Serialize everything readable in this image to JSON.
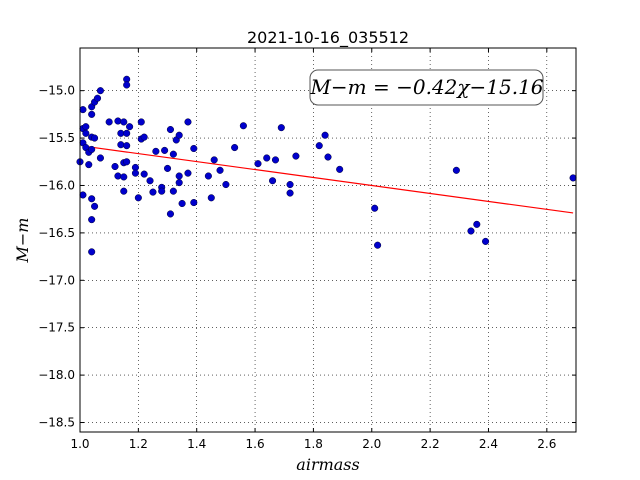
{
  "chart_data": {
    "type": "scatter",
    "title": "2021-10-16_035512",
    "xlabel": "airmass",
    "ylabel": "M−m",
    "xlim": [
      1.0,
      2.7
    ],
    "ylim": [
      -18.6,
      -14.55
    ],
    "x_ticks": [
      "1.0",
      "1.2",
      "1.4",
      "1.6",
      "1.8",
      "2.0",
      "2.2",
      "2.4",
      "2.6"
    ],
    "y_ticks": [
      "−15.0",
      "−15.5",
      "−16.0",
      "−16.5",
      "−17.0",
      "−17.5",
      "−18.0",
      "−18.5"
    ],
    "grid": true,
    "annotation": "M−m = −0.42χ−15.16",
    "fit": {
      "slope": -0.42,
      "intercept": -15.16,
      "x_range": [
        1.02,
        2.69
      ],
      "color": "#ff0000"
    },
    "point_color": "#0000cc",
    "points": [
      [
        1.0,
        -15.75
      ],
      [
        1.01,
        -15.2
      ],
      [
        1.01,
        -15.4
      ],
      [
        1.01,
        -15.55
      ],
      [
        1.01,
        -16.1
      ],
      [
        1.02,
        -15.6
      ],
      [
        1.02,
        -15.38
      ],
      [
        1.02,
        -15.45
      ],
      [
        1.03,
        -15.65
      ],
      [
        1.03,
        -15.78
      ],
      [
        1.04,
        -15.17
      ],
      [
        1.04,
        -15.25
      ],
      [
        1.04,
        -15.49
      ],
      [
        1.04,
        -15.62
      ],
      [
        1.04,
        -16.14
      ],
      [
        1.04,
        -16.36
      ],
      [
        1.04,
        -16.7
      ],
      [
        1.05,
        -15.12
      ],
      [
        1.05,
        -15.5
      ],
      [
        1.05,
        -16.22
      ],
      [
        1.06,
        -15.08
      ],
      [
        1.07,
        -15.0
      ],
      [
        1.07,
        -15.71
      ],
      [
        1.1,
        -15.33
      ],
      [
        1.12,
        -15.8
      ],
      [
        1.13,
        -15.32
      ],
      [
        1.13,
        -15.9
      ],
      [
        1.14,
        -15.45
      ],
      [
        1.14,
        -15.57
      ],
      [
        1.15,
        -15.33
      ],
      [
        1.15,
        -15.76
      ],
      [
        1.15,
        -15.91
      ],
      [
        1.15,
        -16.06
      ],
      [
        1.16,
        -14.88
      ],
      [
        1.16,
        -14.94
      ],
      [
        1.16,
        -15.45
      ],
      [
        1.16,
        -15.58
      ],
      [
        1.16,
        -15.75
      ],
      [
        1.17,
        -15.38
      ],
      [
        1.19,
        -15.81
      ],
      [
        1.19,
        -15.87
      ],
      [
        1.2,
        -16.13
      ],
      [
        1.21,
        -15.33
      ],
      [
        1.21,
        -15.51
      ],
      [
        1.22,
        -15.49
      ],
      [
        1.22,
        -15.88
      ],
      [
        1.24,
        -15.95
      ],
      [
        1.25,
        -16.07
      ],
      [
        1.26,
        -15.64
      ],
      [
        1.28,
        -16.02
      ],
      [
        1.28,
        -16.06
      ],
      [
        1.29,
        -15.63
      ],
      [
        1.3,
        -15.82
      ],
      [
        1.31,
        -15.41
      ],
      [
        1.31,
        -16.3
      ],
      [
        1.32,
        -15.67
      ],
      [
        1.32,
        -16.06
      ],
      [
        1.33,
        -15.52
      ],
      [
        1.34,
        -15.47
      ],
      [
        1.34,
        -15.9
      ],
      [
        1.34,
        -15.97
      ],
      [
        1.35,
        -16.19
      ],
      [
        1.37,
        -15.33
      ],
      [
        1.37,
        -15.87
      ],
      [
        1.39,
        -15.61
      ],
      [
        1.39,
        -16.18
      ],
      [
        1.44,
        -15.9
      ],
      [
        1.45,
        -16.13
      ],
      [
        1.46,
        -15.73
      ],
      [
        1.48,
        -15.84
      ],
      [
        1.5,
        -15.99
      ],
      [
        1.53,
        -15.6
      ],
      [
        1.56,
        -15.37
      ],
      [
        1.61,
        -15.77
      ],
      [
        1.64,
        -15.71
      ],
      [
        1.66,
        -15.95
      ],
      [
        1.67,
        -15.73
      ],
      [
        1.69,
        -15.39
      ],
      [
        1.72,
        -15.99
      ],
      [
        1.72,
        -16.08
      ],
      [
        1.74,
        -15.69
      ],
      [
        1.82,
        -15.58
      ],
      [
        1.84,
        -15.47
      ],
      [
        1.85,
        -15.7
      ],
      [
        1.89,
        -15.83
      ],
      [
        2.01,
        -16.24
      ],
      [
        2.02,
        -16.63
      ],
      [
        2.29,
        -15.84
      ],
      [
        2.34,
        -16.48
      ],
      [
        2.36,
        -16.41
      ],
      [
        2.39,
        -16.59
      ],
      [
        2.69,
        -15.92
      ]
    ]
  }
}
